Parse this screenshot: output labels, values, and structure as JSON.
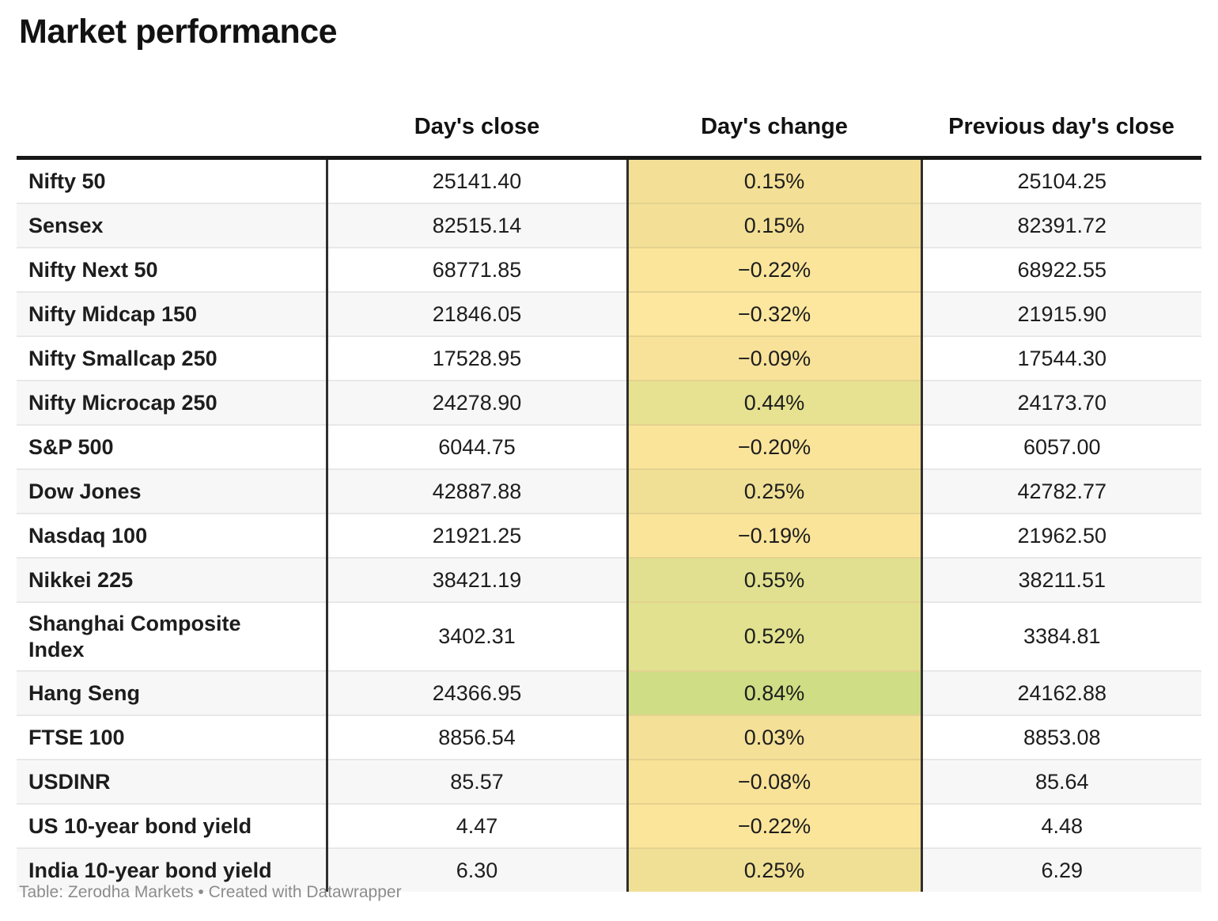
{
  "title": "Market performance",
  "footer": {
    "credit": "Table: Zerodha Markets • Created with Datawrapper"
  },
  "chart_data": {
    "type": "table",
    "title": "Market performance",
    "columns": {
      "label": "",
      "close": "Day's close",
      "change": "Day's change",
      "prev": "Previous day's close"
    },
    "legend_note": "Day's change column is heat-colored: orange-yellow for negative, yellow-green for positive",
    "rows": [
      {
        "label": "Nifty 50",
        "close": "25141.40",
        "change": "0.15%",
        "prev": "25104.25",
        "change_bg": "#F3E096",
        "tall": false
      },
      {
        "label": "Sensex",
        "close": "82515.14",
        "change": "0.15%",
        "prev": "82391.72",
        "change_bg": "#F3E096",
        "tall": false
      },
      {
        "label": "Nifty Next 50",
        "close": "68771.85",
        "change": "−0.22%",
        "prev": "68922.55",
        "change_bg": "#FBE59B",
        "tall": false
      },
      {
        "label": "Nifty Midcap 150",
        "close": "21846.05",
        "change": "−0.32%",
        "prev": "21915.90",
        "change_bg": "#FDE79E",
        "tall": false
      },
      {
        "label": "Nifty Smallcap 250",
        "close": "17528.95",
        "change": "−0.09%",
        "prev": "17544.30",
        "change_bg": "#F8E299",
        "tall": false
      },
      {
        "label": "Nifty Microcap 250",
        "close": "24278.90",
        "change": "0.44%",
        "prev": "24173.70",
        "change_bg": "#E7E292",
        "tall": false
      },
      {
        "label": "S&P 500",
        "close": "6044.75",
        "change": "−0.20%",
        "prev": "6057.00",
        "change_bg": "#FAE49A",
        "tall": false
      },
      {
        "label": "Dow Jones",
        "close": "42887.88",
        "change": "0.25%",
        "prev": "42782.77",
        "change_bg": "#F0E095",
        "tall": false
      },
      {
        "label": "Nasdaq 100",
        "close": "21921.25",
        "change": "−0.19%",
        "prev": "21962.50",
        "change_bg": "#FAE49A",
        "tall": false
      },
      {
        "label": "Nikkei 225",
        "close": "38421.19",
        "change": "0.55%",
        "prev": "38211.51",
        "change_bg": "#E0E090",
        "tall": false
      },
      {
        "label": "Shanghai Composite Index",
        "close": "3402.31",
        "change": "0.52%",
        "prev": "3384.81",
        "change_bg": "#E1E190",
        "tall": true
      },
      {
        "label": "Hang Seng",
        "close": "24366.95",
        "change": "0.84%",
        "prev": "24162.88",
        "change_bg": "#CFDD85",
        "tall": false
      },
      {
        "label": "FTSE 100",
        "close": "8856.54",
        "change": "0.03%",
        "prev": "8853.08",
        "change_bg": "#F4E097",
        "tall": false
      },
      {
        "label": "USDINR",
        "close": "85.57",
        "change": "−0.08%",
        "prev": "85.64",
        "change_bg": "#F8E298",
        "tall": false
      },
      {
        "label": "US 10-year bond yield",
        "close": "4.47",
        "change": "−0.22%",
        "prev": "4.48",
        "change_bg": "#FBE59B",
        "tall": false
      },
      {
        "label": "India 10-year bond yield",
        "close": "6.30",
        "change": "0.25%",
        "prev": "6.29",
        "change_bg": "#F0E095",
        "tall": false
      }
    ]
  }
}
